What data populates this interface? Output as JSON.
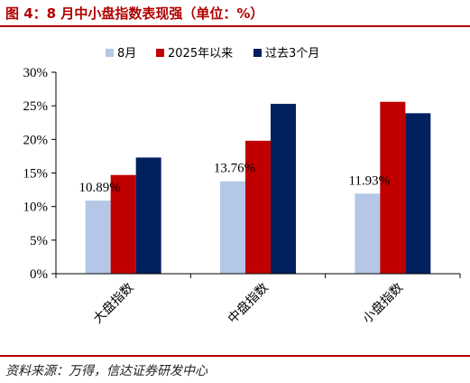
{
  "figure": {
    "title": "图 4：8 月中小盘指数表现强（单位：%）",
    "source": "资料来源：万得，信达证券研发中心"
  },
  "colors": {
    "accent_red": "#b00000",
    "axis": "#000000"
  },
  "chart_data": {
    "type": "bar",
    "categories": [
      "大盘指数",
      "中盘指数",
      "小盘指数"
    ],
    "series": [
      {
        "name": "8月",
        "values": [
          10.89,
          13.76,
          11.93
        ],
        "color": "#b4c7e7"
      },
      {
        "name": "2025年以来",
        "values": [
          14.7,
          19.8,
          25.6
        ],
        "color": "#c00000"
      },
      {
        "name": "过去3个月",
        "values": [
          17.3,
          25.3,
          23.9
        ],
        "color": "#002060"
      }
    ],
    "data_labels": [
      {
        "series": 0,
        "category": 0,
        "text": "10.89%"
      },
      {
        "series": 0,
        "category": 1,
        "text": "13.76%"
      },
      {
        "series": 0,
        "category": 2,
        "text": "11.93%"
      }
    ],
    "yticks": [
      "0%",
      "5%",
      "10%",
      "15%",
      "20%",
      "25%",
      "30%"
    ],
    "ylim": [
      0,
      30
    ],
    "ytick_step": 5,
    "title": "",
    "xlabel": "",
    "ylabel": "",
    "legend_position": "top-center",
    "grid": false
  }
}
